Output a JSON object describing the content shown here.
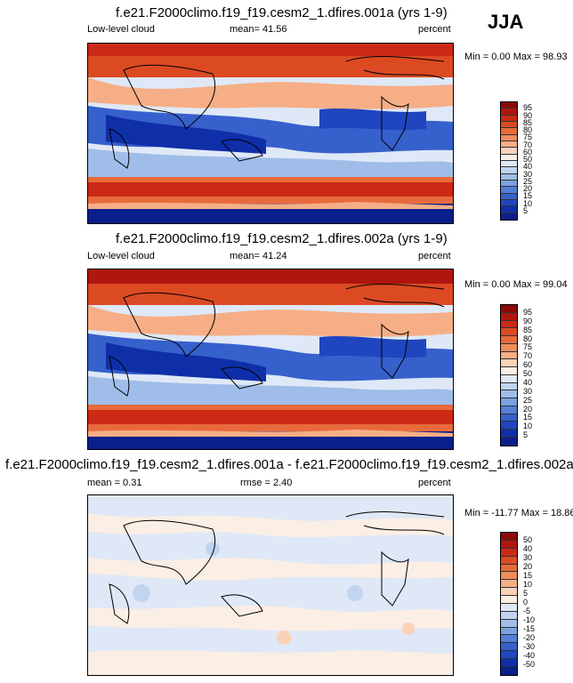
{
  "season": "JJA",
  "panels": [
    {
      "title": "f.e21.F2000climo.f19_f19.cesm2_1.dfires.001a (yrs 1-9)",
      "left_label": "Low-level cloud",
      "mid_label": "mean=  41.56",
      "right_label": "percent",
      "minmax": "Min =  0.00 Max =  98.93",
      "colors": [
        "#8b0a0a",
        "#b0160f",
        "#cc2a16",
        "#dc4a24",
        "#e86a3c",
        "#f08c5c",
        "#f6ae86",
        "#fad2b8",
        "#fbeee4",
        "#dfe8f6",
        "#c2d4f0",
        "#9fbde8",
        "#7aa2df",
        "#557fd6",
        "#3660cc",
        "#1f45bf",
        "#0f2fa9",
        "#0a1f8c"
      ],
      "labels": [
        "95",
        "90",
        "85",
        "80",
        "75",
        "70",
        "60",
        "50",
        "40",
        "30",
        "25",
        "20",
        "15",
        "10",
        "5"
      ]
    },
    {
      "title": "f.e21.F2000climo.f19_f19.cesm2_1.dfires.002a (yrs 1-9)",
      "left_label": "Low-level cloud",
      "mid_label": "mean=  41.24",
      "right_label": "percent",
      "minmax": "Min =  0.00 Max =  99.04",
      "colors": [
        "#8b0a0a",
        "#b0160f",
        "#cc2a16",
        "#dc4a24",
        "#e86a3c",
        "#f08c5c",
        "#f6ae86",
        "#fad2b8",
        "#fbeee4",
        "#dfe8f6",
        "#c2d4f0",
        "#9fbde8",
        "#7aa2df",
        "#557fd6",
        "#3660cc",
        "#1f45bf",
        "#0f2fa9",
        "#0a1f8c"
      ],
      "labels": [
        "95",
        "90",
        "85",
        "80",
        "75",
        "70",
        "60",
        "50",
        "40",
        "30",
        "25",
        "20",
        "15",
        "10",
        "5"
      ]
    },
    {
      "title": "f.e21.F2000climo.f19_f19.cesm2_1.dfires.001a - f.e21.F2000climo.f19_f19.cesm2_1.dfires.002a",
      "left_label": "mean =   0.31",
      "mid_label": "rmse =   2.40",
      "right_label": "percent",
      "minmax": "Min = -11.77 Max =  18.86",
      "colors": [
        "#8b0a0a",
        "#b0160f",
        "#cc2a16",
        "#dc4a24",
        "#e86a3c",
        "#f08c5c",
        "#f6ae86",
        "#fad2b8",
        "#fbeee4",
        "#dfe8f6",
        "#c2d4f0",
        "#9fbde8",
        "#7aa2df",
        "#557fd6",
        "#3660cc",
        "#1f45bf",
        "#0f2fa9",
        "#0a1f8c"
      ],
      "labels": [
        "50",
        "40",
        "30",
        "20",
        "15",
        "10",
        "5",
        "0",
        "-5",
        "-10",
        "-15",
        "-20",
        "-30",
        "-40",
        "-50"
      ]
    }
  ]
}
